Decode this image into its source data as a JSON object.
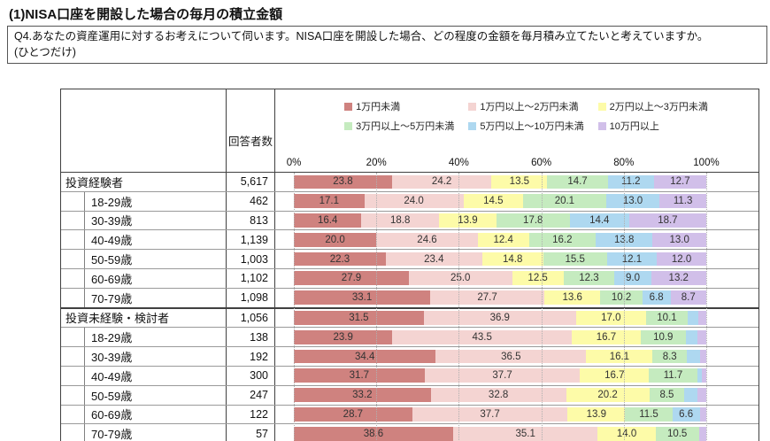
{
  "page": {
    "title": "(1)NISA口座を開設した場合の毎月の積立金額",
    "question_line1": "Q4.あなたの資産運用に対するお考えについて伺います。NISA口座を開設した場合、どの程度の金額を毎月積み立てたいと考えていますか。",
    "question_line2": "(ひとつだけ)"
  },
  "table": {
    "respondents_header": "回答者数"
  },
  "chart_data": {
    "type": "bar",
    "subtype": "horizontal-stacked-percent",
    "xlim": [
      0,
      100
    ],
    "axis_ticks": [
      "0%",
      "20%",
      "40%",
      "60%",
      "80%",
      "100%"
    ],
    "legend_position": "top",
    "grid": "dotted-vertical",
    "legend": [
      {
        "label": "1万円未満",
        "color": "#cf827f"
      },
      {
        "label": "1万円以上〜2万円未満",
        "color": "#f4d4d2"
      },
      {
        "label": "2万円以上〜3万円未満",
        "color": "#fdfba8"
      },
      {
        "label": "3万円以上〜5万円未満",
        "color": "#c5ebbf"
      },
      {
        "label": "5万円以上〜10万円未満",
        "color": "#aed8f0"
      },
      {
        "label": "10万円以上",
        "color": "#d1bfe9"
      }
    ],
    "label_min_value": 5.5,
    "rows": [
      {
        "label": "投資経験者",
        "group": true,
        "n": "5,617",
        "values": [
          23.8,
          24.2,
          13.5,
          14.7,
          11.2,
          12.7
        ]
      },
      {
        "label": "18-29歳",
        "group": false,
        "n": "462",
        "values": [
          17.1,
          24.0,
          14.5,
          20.1,
          13.0,
          11.3
        ]
      },
      {
        "label": "30-39歳",
        "group": false,
        "n": "813",
        "values": [
          16.4,
          18.8,
          13.9,
          17.8,
          14.4,
          18.7
        ]
      },
      {
        "label": "40-49歳",
        "group": false,
        "n": "1,139",
        "values": [
          20.0,
          24.6,
          12.4,
          16.2,
          13.8,
          13.0
        ]
      },
      {
        "label": "50-59歳",
        "group": false,
        "n": "1,003",
        "values": [
          22.3,
          23.4,
          14.8,
          15.5,
          12.1,
          12.0
        ]
      },
      {
        "label": "60-69歳",
        "group": false,
        "n": "1,102",
        "values": [
          27.9,
          25.0,
          12.5,
          12.3,
          9.0,
          13.2
        ]
      },
      {
        "label": "70-79歳",
        "group": false,
        "n": "1,098",
        "values": [
          33.1,
          27.7,
          13.6,
          10.2,
          6.8,
          8.7
        ]
      },
      {
        "label": "投資未経験・検討者",
        "group": true,
        "n": "1,056",
        "values": [
          31.5,
          36.9,
          17.0,
          10.1,
          2.6,
          1.9
        ]
      },
      {
        "label": "18-29歳",
        "group": false,
        "n": "138",
        "values": [
          23.9,
          43.5,
          16.7,
          10.9,
          2.9,
          2.1
        ]
      },
      {
        "label": "30-39歳",
        "group": false,
        "n": "192",
        "values": [
          34.4,
          36.5,
          16.1,
          8.3,
          3.1,
          1.6
        ]
      },
      {
        "label": "40-49歳",
        "group": false,
        "n": "300",
        "values": [
          31.7,
          37.7,
          16.7,
          11.7,
          1.2,
          1.0
        ]
      },
      {
        "label": "50-59歳",
        "group": false,
        "n": "247",
        "values": [
          33.2,
          32.8,
          20.2,
          8.5,
          3.2,
          2.1
        ]
      },
      {
        "label": "60-69歳",
        "group": false,
        "n": "122",
        "values": [
          28.7,
          37.7,
          13.9,
          11.5,
          6.6,
          1.6
        ]
      },
      {
        "label": "70-79歳",
        "group": false,
        "n": "57",
        "values": [
          38.6,
          35.1,
          14.0,
          10.5,
          0.0,
          1.8
        ]
      }
    ]
  }
}
